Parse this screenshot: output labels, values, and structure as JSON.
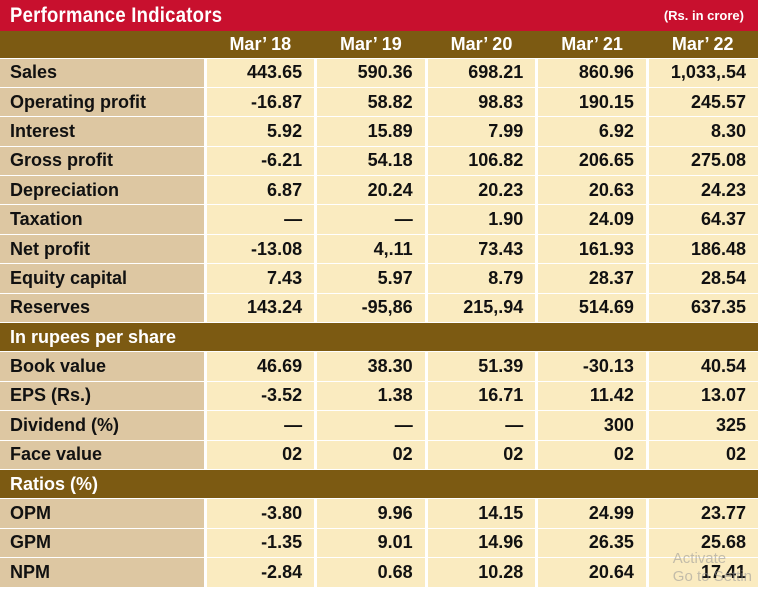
{
  "header": {
    "title": "Performance Indicators",
    "unit": "(Rs. in crore)"
  },
  "columns": [
    "Mar’ 18",
    "Mar’ 19",
    "Mar’ 20",
    "Mar’ 21",
    "Mar’ 22"
  ],
  "rows": [
    {
      "label": "Sales",
      "values": [
        "443.65",
        "590.36",
        "698.21",
        "860.96",
        "1,033,.54"
      ]
    },
    {
      "label": "Operating profit",
      "values": [
        "-16.87",
        "58.82",
        "98.83",
        "190.15",
        "245.57"
      ]
    },
    {
      "label": "Interest",
      "values": [
        "5.92",
        "15.89",
        "7.99",
        "6.92",
        "8.30"
      ]
    },
    {
      "label": "Gross profit",
      "values": [
        "-6.21",
        "54.18",
        "106.82",
        "206.65",
        "275.08"
      ]
    },
    {
      "label": "Depreciation",
      "values": [
        "6.87",
        "20.24",
        "20.23",
        "20.63",
        "24.23"
      ]
    },
    {
      "label": "Taxation",
      "values": [
        "—",
        "—",
        "1.90",
        "24.09",
        "64.37"
      ]
    },
    {
      "label": "Net profit",
      "values": [
        "-13.08",
        "4,.11",
        "73.43",
        "161.93",
        "186.48"
      ]
    },
    {
      "label": "Equity capital",
      "values": [
        "7.43",
        "5.97",
        "8.79",
        "28.37",
        "28.54"
      ]
    },
    {
      "label": "Reserves",
      "values": [
        "143.24",
        "-95,86",
        "215,.94",
        "514.69",
        "637.35"
      ]
    }
  ],
  "section_per_share": {
    "label": "In rupees per share",
    "rows": [
      {
        "label": "Book value",
        "values": [
          "46.69",
          "38.30",
          "51.39",
          "-30.13",
          "40.54"
        ]
      },
      {
        "label": "EPS (Rs.)",
        "values": [
          "-3.52",
          "1.38",
          "16.71",
          "11.42",
          "13.07"
        ]
      },
      {
        "label": "Dividend (%)",
        "values": [
          "—",
          "—",
          "—",
          "300",
          "325"
        ]
      },
      {
        "label": "Face  value",
        "values": [
          "02",
          "02",
          "02",
          "02",
          "02"
        ]
      }
    ]
  },
  "section_ratios": {
    "label": "Ratios (%)",
    "rows": [
      {
        "label": "OPM",
        "values": [
          "-3.80",
          "9.96",
          "14.15",
          "24.99",
          "23.77"
        ]
      },
      {
        "label": "GPM",
        "values": [
          "-1.35",
          "9.01",
          "14.96",
          "26.35",
          "25.68"
        ]
      },
      {
        "label": "NPM",
        "values": [
          "-2.84",
          "0.68",
          "10.28",
          "20.64",
          "17.41"
        ]
      }
    ]
  },
  "watermark": {
    "line1": "Activate",
    "line2": "Go to Settin"
  }
}
